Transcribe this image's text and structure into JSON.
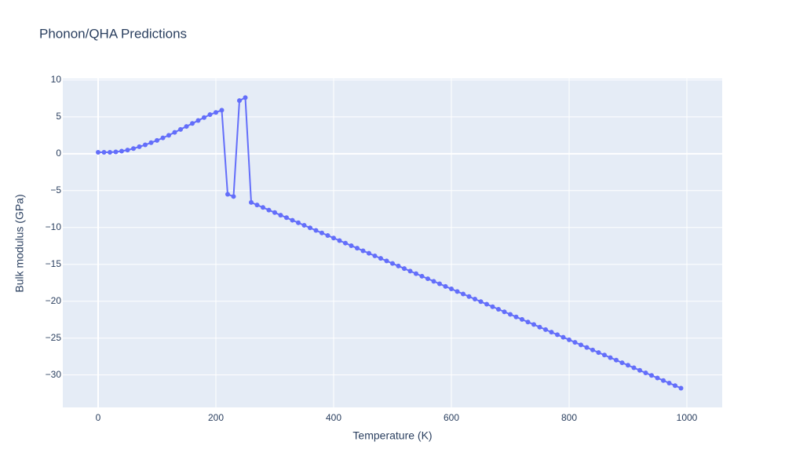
{
  "chart_data": {
    "type": "line",
    "title": "Phonon/QHA Predictions",
    "x_label": "Temperature (K)",
    "y_label": "Bulk modulus (GPa)",
    "x": [
      0,
      10,
      20,
      30,
      40,
      50,
      60,
      70,
      80,
      90,
      100,
      110,
      120,
      130,
      140,
      150,
      160,
      170,
      180,
      190,
      200,
      210,
      220,
      230,
      240,
      250,
      260,
      270,
      280,
      290,
      300,
      310,
      320,
      330,
      340,
      350,
      360,
      370,
      380,
      390,
      400,
      410,
      420,
      430,
      440,
      450,
      460,
      470,
      480,
      490,
      500,
      510,
      520,
      530,
      540,
      550,
      560,
      570,
      580,
      590,
      600,
      610,
      620,
      630,
      640,
      650,
      660,
      670,
      680,
      690,
      700,
      710,
      720,
      730,
      740,
      750,
      760,
      770,
      780,
      790,
      800,
      810,
      820,
      830,
      840,
      850,
      860,
      870,
      880,
      890,
      900,
      910,
      920,
      930,
      940,
      950,
      960,
      970,
      980,
      990
    ],
    "series": [
      {
        "name": "Bulk modulus",
        "color": "#636efa",
        "values": [
          0.2,
          0.2,
          0.2,
          0.25,
          0.35,
          0.5,
          0.7,
          0.95,
          1.2,
          1.5,
          1.8,
          2.15,
          2.5,
          2.9,
          3.3,
          3.7,
          4.1,
          4.5,
          4.9,
          5.3,
          5.6,
          5.9,
          -5.5,
          -5.8,
          7.2,
          7.6,
          -6.6,
          -6.95,
          -7.29,
          -7.64,
          -7.98,
          -8.33,
          -8.67,
          -9.02,
          -9.36,
          -9.71,
          -10.05,
          -10.4,
          -10.74,
          -11.09,
          -11.43,
          -11.78,
          -12.12,
          -12.47,
          -12.81,
          -13.16,
          -13.5,
          -13.85,
          -14.19,
          -14.54,
          -14.88,
          -15.23,
          -15.57,
          -15.92,
          -16.26,
          -16.61,
          -16.95,
          -17.3,
          -17.64,
          -17.99,
          -18.33,
          -18.68,
          -19.02,
          -19.37,
          -19.71,
          -20.06,
          -20.4,
          -20.75,
          -21.09,
          -21.44,
          -21.78,
          -22.13,
          -22.47,
          -22.82,
          -23.16,
          -23.51,
          -23.85,
          -24.2,
          -24.54,
          -24.89,
          -25.23,
          -25.58,
          -25.92,
          -26.27,
          -26.61,
          -26.96,
          -27.3,
          -27.65,
          -27.99,
          -28.34,
          -28.68,
          -29.03,
          -29.37,
          -29.72,
          -30.06,
          -30.41,
          -30.75,
          -31.1,
          -31.44,
          -31.79
        ]
      }
    ],
    "xlim": [
      -60,
      1060
    ],
    "xticks": [
      0,
      200,
      400,
      600,
      800,
      1000
    ],
    "ylim": [
      -34.4,
      10.2
    ],
    "yticks": [
      10,
      5,
      0,
      {
        "value": -5,
        "label": "−5"
      },
      {
        "value": -10,
        "label": "−10"
      },
      {
        "value": -15,
        "label": "−15"
      },
      {
        "value": -20,
        "label": "−20"
      },
      {
        "value": -25,
        "label": "−25"
      },
      {
        "value": -30,
        "label": "−30"
      }
    ],
    "grid": true
  }
}
